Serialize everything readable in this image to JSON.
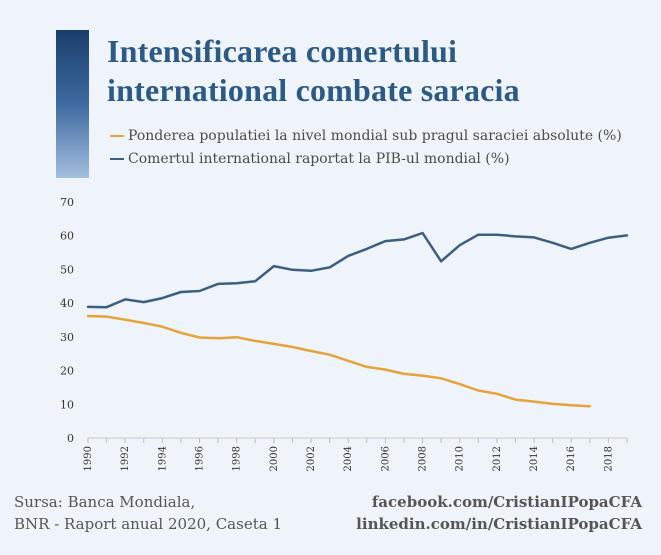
{
  "title": {
    "line1": "Intensificarea comertului",
    "line2": "international combate saracia"
  },
  "colors": {
    "background": "#eef4f9",
    "title": "#2c5a86",
    "poverty_series": "#e6a23c",
    "trade_series": "#3b5f80"
  },
  "legend": [
    {
      "label": "Ponderea populatiei la nivel mondial sub pragul saraciei absolute (%)",
      "color": "#e6a23c"
    },
    {
      "label": "Comertul international raportat la PIB-ul mondial (%)",
      "color": "#3b5f80"
    }
  ],
  "footer": {
    "source_line1": "Sursa: Banca Mondiala,",
    "source_line2": "BNR - Raport anual 2020, Caseta 1",
    "social_line1": "facebook.com/CristianIPopaCFA",
    "social_line2": "linkedin.com/in/CristianIPopaCFA"
  },
  "chart_data": {
    "type": "line",
    "title": "Intensificarea comertului international combate saracia",
    "xlabel": "",
    "ylabel": "",
    "xlim": [
      1990,
      2019
    ],
    "ylim": [
      0,
      70
    ],
    "yticks": [
      0,
      10,
      20,
      30,
      40,
      50,
      60,
      70
    ],
    "xticks": [
      1990,
      1992,
      1994,
      1996,
      1998,
      2000,
      2002,
      2004,
      2006,
      2008,
      2010,
      2012,
      2014,
      2016,
      2018
    ],
    "grid": false,
    "legend_position": "top-left",
    "series": [
      {
        "name": "Ponderea populatiei la nivel mondial sub pragul saraciei absolute (%)",
        "color": "#e6a23c",
        "x": [
          1990,
          1991,
          1992,
          1993,
          1994,
          1995,
          1996,
          1997,
          1998,
          1999,
          2000,
          2001,
          2002,
          2003,
          2004,
          2005,
          2006,
          2007,
          2008,
          2009,
          2010,
          2011,
          2012,
          2013,
          2014,
          2015,
          2016,
          2017
        ],
        "values": [
          36.2,
          36.0,
          35.1,
          34.1,
          33.0,
          31.2,
          29.8,
          29.6,
          29.9,
          28.8,
          27.9,
          27.0,
          25.8,
          24.7,
          22.9,
          21.1,
          20.3,
          19.0,
          18.5,
          17.7,
          16.0,
          14.1,
          13.1,
          11.4,
          10.8,
          10.1,
          9.7,
          9.4
        ]
      },
      {
        "name": "Comertul international raportat la PIB-ul mondial (%)",
        "color": "#3b5f80",
        "x": [
          1990,
          1991,
          1992,
          1993,
          1994,
          1995,
          1996,
          1997,
          1998,
          1999,
          2000,
          2001,
          2002,
          2003,
          2004,
          2005,
          2006,
          2007,
          2008,
          2009,
          2010,
          2011,
          2012,
          2013,
          2014,
          2015,
          2016,
          2017,
          2018,
          2019
        ],
        "values": [
          38.9,
          38.8,
          41.1,
          40.3,
          41.5,
          43.3,
          43.6,
          45.7,
          45.9,
          46.5,
          51.0,
          49.9,
          49.6,
          50.6,
          54.0,
          56.1,
          58.4,
          58.9,
          60.8,
          52.4,
          57.2,
          60.3,
          60.3,
          59.8,
          59.5,
          57.9,
          56.1,
          57.9,
          59.4,
          60.1
        ]
      }
    ]
  }
}
